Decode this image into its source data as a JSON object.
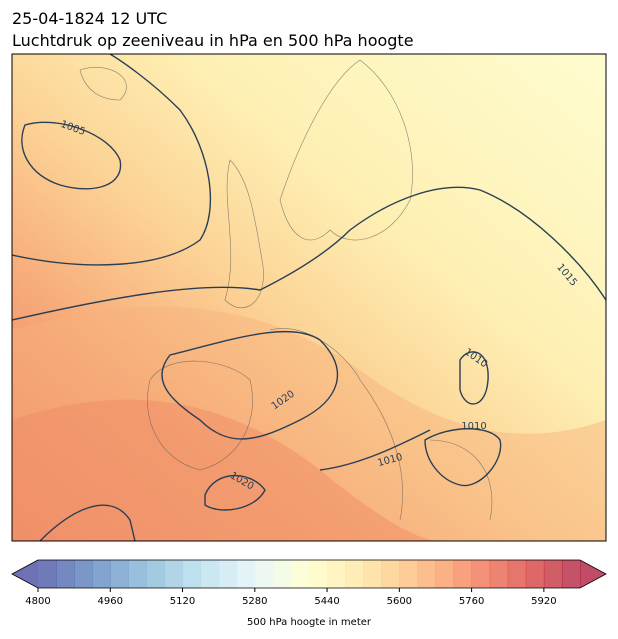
{
  "title": [
    "25-04-1824 12 UTC",
    "Luchtdruk op zeeniveau in hPa en 500 hPa hoogte"
  ],
  "isobar_labels": [
    "1005",
    "1015",
    "1010",
    "1010",
    "1010",
    "1020",
    "1020"
  ],
  "colorbar": {
    "ticks": [
      4800,
      4960,
      5120,
      5280,
      5440,
      5600,
      5760,
      5920
    ],
    "vlim": [
      4800,
      6000
    ],
    "label": "500 hPa hoogte in meter"
  }
}
